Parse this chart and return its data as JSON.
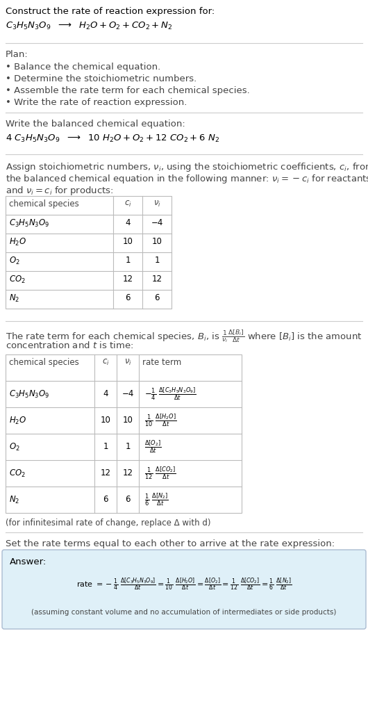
{
  "title_line1": "Construct the rate of reaction expression for:",
  "plan_header": "Plan:",
  "plan_items": [
    "• Balance the chemical equation.",
    "• Determine the stoichiometric numbers.",
    "• Assemble the rate term for each chemical species.",
    "• Write the rate of reaction expression."
  ],
  "balanced_header": "Write the balanced chemical equation:",
  "table1_rows": [
    [
      "4",
      "-4"
    ],
    [
      "10",
      "10"
    ],
    [
      "1",
      "1"
    ],
    [
      "12",
      "12"
    ],
    [
      "6",
      "6"
    ]
  ],
  "table2_rows": [
    [
      "4",
      "-4"
    ],
    [
      "10",
      "10"
    ],
    [
      "1",
      "1"
    ],
    [
      "12",
      "12"
    ],
    [
      "6",
      "6"
    ]
  ],
  "infinitesimal_note": "(for infinitesimal rate of change, replace Δ with d)",
  "set_equal_text": "Set the rate terms equal to each other to arrive at the rate expression:",
  "answer_box_color": "#dff0f8",
  "bg_color": "#ffffff",
  "text_color": "#000000",
  "gray_text": "#444444",
  "table_border_color": "#bbbbbb",
  "separator_color": "#cccccc"
}
